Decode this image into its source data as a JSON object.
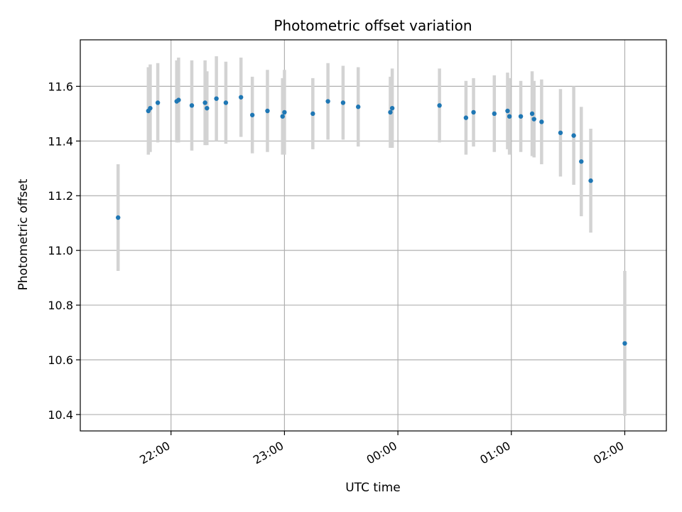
{
  "chart_data": {
    "type": "scatter",
    "title": "Photometric offset variation",
    "xlabel": "UTC time",
    "ylabel": "Photometric offset",
    "x_tick_labels": [
      "22:00",
      "23:00",
      "00:00",
      "01:00",
      "02:00"
    ],
    "y_tick_labels": [
      "10.4",
      "10.6",
      "10.8",
      "11.0",
      "11.2",
      "11.4",
      "11.6"
    ],
    "y_ticks": [
      10.4,
      10.6,
      10.8,
      11.0,
      11.2,
      11.4,
      11.6
    ],
    "ylim": [
      10.34,
      11.77
    ],
    "xlim": [
      "21:12",
      "02:22"
    ],
    "grid": true,
    "marker_color": "#1f77b4",
    "errorbar_color": "#d3d3d3",
    "points": [
      {
        "x": "21:32",
        "y": 11.12,
        "err": 0.195
      },
      {
        "x": "21:48",
        "y": 11.51,
        "err": 0.16
      },
      {
        "x": "21:49",
        "y": 11.52,
        "err": 0.16
      },
      {
        "x": "21:53",
        "y": 11.54,
        "err": 0.145
      },
      {
        "x": "22:03",
        "y": 11.545,
        "err": 0.15
      },
      {
        "x": "22:04",
        "y": 11.55,
        "err": 0.155
      },
      {
        "x": "22:11",
        "y": 11.53,
        "err": 0.165
      },
      {
        "x": "22:18",
        "y": 11.54,
        "err": 0.155
      },
      {
        "x": "22:19",
        "y": 11.52,
        "err": 0.135
      },
      {
        "x": "22:24",
        "y": 11.555,
        "err": 0.155
      },
      {
        "x": "22:29",
        "y": 11.54,
        "err": 0.15
      },
      {
        "x": "22:37",
        "y": 11.56,
        "err": 0.145
      },
      {
        "x": "22:43",
        "y": 11.495,
        "err": 0.14
      },
      {
        "x": "22:51",
        "y": 11.51,
        "err": 0.15
      },
      {
        "x": "22:59",
        "y": 11.49,
        "err": 0.14
      },
      {
        "x": "23:00",
        "y": 11.505,
        "err": 0.155
      },
      {
        "x": "23:15",
        "y": 11.5,
        "err": 0.13
      },
      {
        "x": "23:23",
        "y": 11.545,
        "err": 0.14
      },
      {
        "x": "23:31",
        "y": 11.54,
        "err": 0.135
      },
      {
        "x": "23:39",
        "y": 11.525,
        "err": 0.145
      },
      {
        "x": "23:56",
        "y": 11.505,
        "err": 0.13
      },
      {
        "x": "23:57",
        "y": 11.52,
        "err": 0.145
      },
      {
        "x": "00:22",
        "y": 11.53,
        "err": 0.135
      },
      {
        "x": "00:36",
        "y": 11.485,
        "err": 0.135
      },
      {
        "x": "00:40",
        "y": 11.505,
        "err": 0.125
      },
      {
        "x": "00:51",
        "y": 11.5,
        "err": 0.14
      },
      {
        "x": "00:58",
        "y": 11.51,
        "err": 0.14
      },
      {
        "x": "00:59",
        "y": 11.49,
        "err": 0.14
      },
      {
        "x": "01:05",
        "y": 11.49,
        "err": 0.13
      },
      {
        "x": "01:11",
        "y": 11.5,
        "err": 0.155
      },
      {
        "x": "01:12",
        "y": 11.48,
        "err": 0.14
      },
      {
        "x": "01:16",
        "y": 11.47,
        "err": 0.155
      },
      {
        "x": "01:26",
        "y": 11.43,
        "err": 0.16
      },
      {
        "x": "01:33",
        "y": 11.42,
        "err": 0.18
      },
      {
        "x": "01:37",
        "y": 11.325,
        "err": 0.2
      },
      {
        "x": "01:42",
        "y": 11.255,
        "err": 0.19
      },
      {
        "x": "02:00",
        "y": 10.66,
        "err": 0.265
      }
    ]
  }
}
